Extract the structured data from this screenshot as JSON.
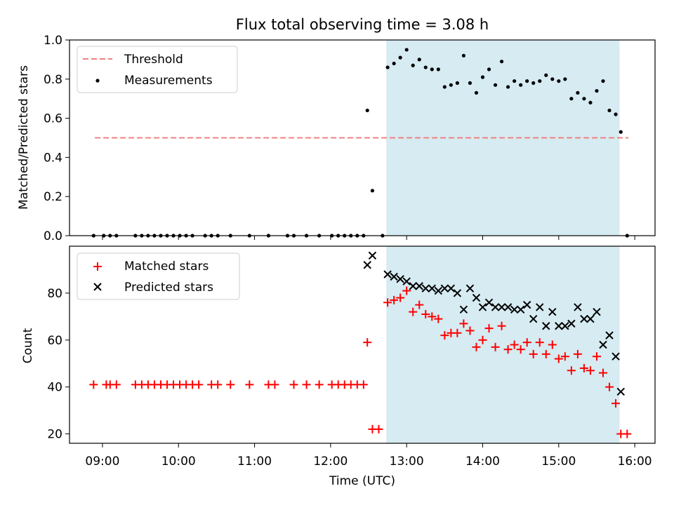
{
  "chart_data": [
    {
      "type": "scatter",
      "title": "Flux total observing time = 3.08 h",
      "xlabel": "",
      "ylabel": "Matched/Predicted stars",
      "xlim": [
        "08:34",
        "16:16"
      ],
      "ylim": [
        0,
        1.0
      ],
      "yticks": [
        0.0,
        0.2,
        0.4,
        0.6,
        0.8,
        1.0
      ],
      "ytick_labels": [
        "0.0",
        "0.2",
        "0.4",
        "0.6",
        "0.8",
        "1.0"
      ],
      "shaded_interval": [
        "12:44",
        "15:48"
      ],
      "legend_position": "upper-left",
      "threshold": {
        "name": "Threshold",
        "y": 0.5,
        "x_range": [
          "08:54",
          "15:55"
        ],
        "color": "#f08080"
      },
      "series": [
        {
          "name": "Measurements",
          "marker": "dot",
          "color": "#000000",
          "x": [
            "08:53",
            "09:01",
            "09:06",
            "09:11",
            "09:26",
            "09:31",
            "09:36",
            "09:41",
            "09:46",
            "09:51",
            "09:56",
            "10:01",
            "10:06",
            "10:11",
            "10:21",
            "10:26",
            "10:31",
            "10:41",
            "10:56",
            "11:11",
            "11:26",
            "11:31",
            "11:41",
            "11:51",
            "12:01",
            "12:06",
            "12:11",
            "12:16",
            "12:21",
            "12:26",
            "12:29",
            "12:33",
            "12:41",
            "12:45",
            "12:50",
            "12:55",
            "13:00",
            "13:05",
            "13:10",
            "13:15",
            "13:20",
            "13:25",
            "13:30",
            "13:35",
            "13:40",
            "13:45",
            "13:50",
            "13:55",
            "14:00",
            "14:05",
            "14:10",
            "14:15",
            "14:20",
            "14:25",
            "14:30",
            "14:35",
            "14:40",
            "14:45",
            "14:50",
            "14:55",
            "15:00",
            "15:05",
            "15:10",
            "15:15",
            "15:20",
            "15:25",
            "15:30",
            "15:35",
            "15:40",
            "15:45",
            "15:49",
            "15:54"
          ],
          "y": [
            0,
            0,
            0,
            0,
            0,
            0,
            0,
            0,
            0,
            0,
            0,
            0,
            0,
            0,
            0,
            0,
            0,
            0,
            0,
            0,
            0,
            0,
            0,
            0,
            0,
            0,
            0,
            0,
            0,
            0,
            0.64,
            0.23,
            0,
            0.86,
            0.88,
            0.91,
            0.95,
            0.87,
            0.9,
            0.86,
            0.85,
            0.85,
            0.76,
            0.77,
            0.78,
            0.92,
            0.78,
            0.73,
            0.81,
            0.85,
            0.77,
            0.89,
            0.76,
            0.79,
            0.77,
            0.79,
            0.78,
            0.79,
            0.82,
            0.8,
            0.79,
            0.8,
            0.7,
            0.73,
            0.7,
            0.68,
            0.74,
            0.79,
            0.64,
            0.62,
            0.53,
            0
          ]
        }
      ]
    },
    {
      "type": "scatter",
      "title": "",
      "xlabel": "Time (UTC)",
      "ylabel": "Count",
      "xlim": [
        "08:34",
        "16:16"
      ],
      "ylim": [
        16,
        100
      ],
      "yticks": [
        20,
        40,
        60,
        80
      ],
      "xticks": [
        "09:00",
        "10:00",
        "11:00",
        "12:00",
        "13:00",
        "14:00",
        "15:00",
        "16:00"
      ],
      "shaded_interval": [
        "12:44",
        "15:48"
      ],
      "legend_position": "upper-left",
      "series": [
        {
          "name": "Matched stars",
          "marker": "plus",
          "color": "#ff0000",
          "x": [
            "08:53",
            "09:03",
            "09:06",
            "09:11",
            "09:26",
            "09:31",
            "09:36",
            "09:41",
            "09:46",
            "09:51",
            "09:56",
            "10:01",
            "10:06",
            "10:11",
            "10:16",
            "10:26",
            "10:31",
            "10:41",
            "10:56",
            "11:11",
            "11:16",
            "11:31",
            "11:41",
            "11:51",
            "12:01",
            "12:06",
            "12:11",
            "12:16",
            "12:21",
            "12:26",
            "12:29",
            "12:33",
            "12:38",
            "12:45",
            "12:50",
            "12:55",
            "13:00",
            "13:05",
            "13:10",
            "13:15",
            "13:20",
            "13:25",
            "13:30",
            "13:35",
            "13:40",
            "13:45",
            "13:50",
            "13:55",
            "14:00",
            "14:05",
            "14:10",
            "14:15",
            "14:20",
            "14:25",
            "14:30",
            "14:35",
            "14:40",
            "14:45",
            "14:50",
            "14:55",
            "15:00",
            "15:05",
            "15:10",
            "15:15",
            "15:20",
            "15:25",
            "15:30",
            "15:35",
            "15:40",
            "15:45",
            "15:49",
            "15:54"
          ],
          "y": [
            41,
            41,
            41,
            41,
            41,
            41,
            41,
            41,
            41,
            41,
            41,
            41,
            41,
            41,
            41,
            41,
            41,
            41,
            41,
            41,
            41,
            41,
            41,
            41,
            41,
            41,
            41,
            41,
            41,
            41,
            59,
            22,
            22,
            76,
            77,
            78,
            81,
            72,
            75,
            71,
            70,
            69,
            62,
            63,
            63,
            67,
            64,
            57,
            60,
            65,
            57,
            66,
            56,
            58,
            56,
            59,
            54,
            59,
            54,
            58,
            52,
            53,
            47,
            54,
            48,
            47,
            53,
            46,
            40,
            33,
            20,
            20
          ]
        },
        {
          "name": "Predicted stars",
          "marker": "x",
          "color": "#000000",
          "x": [
            "12:29",
            "12:33",
            "12:45",
            "12:50",
            "12:55",
            "13:00",
            "13:05",
            "13:10",
            "13:15",
            "13:20",
            "13:25",
            "13:30",
            "13:35",
            "13:40",
            "13:45",
            "13:50",
            "13:55",
            "14:00",
            "14:05",
            "14:10",
            "14:15",
            "14:20",
            "14:25",
            "14:30",
            "14:35",
            "14:40",
            "14:45",
            "14:50",
            "14:55",
            "15:00",
            "15:05",
            "15:10",
            "15:15",
            "15:20",
            "15:25",
            "15:30",
            "15:35",
            "15:40",
            "15:45",
            "15:49"
          ],
          "y": [
            92,
            96,
            88,
            87,
            86,
            85,
            83,
            83,
            82,
            82,
            81,
            82,
            82,
            80,
            73,
            82,
            78,
            74,
            76,
            74,
            74,
            74,
            73,
            73,
            75,
            69,
            74,
            66,
            72,
            66,
            66,
            67,
            74,
            69,
            69,
            72,
            58,
            62,
            53,
            38
          ]
        }
      ]
    }
  ]
}
